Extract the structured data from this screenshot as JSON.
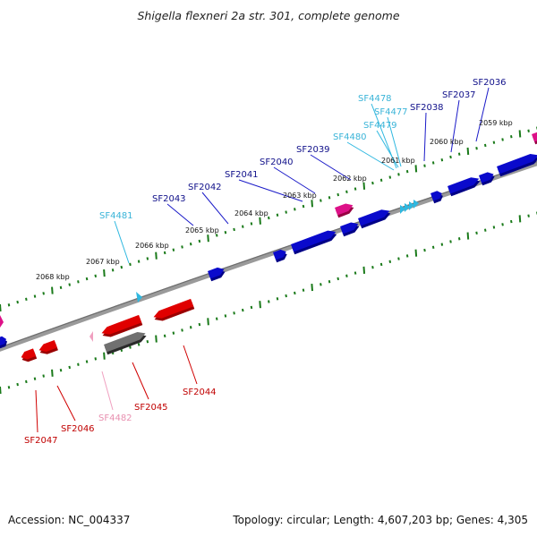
{
  "title": "Shigella flexneri 2a str. 301, complete genome",
  "footer": {
    "accession": "Accession: NC_004337",
    "summary": "Topology: circular; Length: 4,607,203 bp; Genes: 4,305"
  },
  "colors": {
    "forward_gene": "#0a0acc",
    "forward_label": "#10108a",
    "forward_small": "#2fb8e0",
    "forward_small_label": "#3ab4d8",
    "reverse_gene": "#e00000",
    "reverse_label": "#c00000",
    "reverse_pseudo": "#f0a0c0",
    "reverse_pseudo_label": "#e890b0",
    "other_rna": "#dd1188",
    "backbone": "#808080",
    "tick": "#1a7a1a"
  },
  "kbp_ticks": [
    {
      "label": "2059 kbp"
    },
    {
      "label": "2060 kbp"
    },
    {
      "label": "2061 kbp"
    },
    {
      "label": "2062 kbp"
    },
    {
      "label": "2063 kbp"
    },
    {
      "label": "2064 kbp"
    },
    {
      "label": "2065 kbp"
    },
    {
      "label": "2066 kbp"
    },
    {
      "label": "2067 kbp"
    },
    {
      "label": "2068 kbp"
    }
  ],
  "forward_genes": [
    {
      "name": "SF2036",
      "kind": "cds"
    },
    {
      "name": "SF2037",
      "kind": "cds"
    },
    {
      "name": "SF2038",
      "kind": "cds"
    },
    {
      "name": "SF4477",
      "kind": "small"
    },
    {
      "name": "SF4478",
      "kind": "small"
    },
    {
      "name": "SF4479",
      "kind": "small"
    },
    {
      "name": "SF4480",
      "kind": "small"
    },
    {
      "name": "SF2039",
      "kind": "cds"
    },
    {
      "name": "SF2040",
      "kind": "cds"
    },
    {
      "name": "SF2041",
      "kind": "cds"
    },
    {
      "name": "SF2042",
      "kind": "cds"
    },
    {
      "name": "SF2043",
      "kind": "cds"
    },
    {
      "name": "SF4481",
      "kind": "small"
    }
  ],
  "reverse_genes": [
    {
      "name": "SF2044",
      "kind": "cds"
    },
    {
      "name": "SF2045",
      "kind": "cds"
    },
    {
      "name": "SF4482",
      "kind": "pseudo"
    },
    {
      "name": "SF2046",
      "kind": "cds"
    },
    {
      "name": "SF2047",
      "kind": "cds"
    }
  ]
}
